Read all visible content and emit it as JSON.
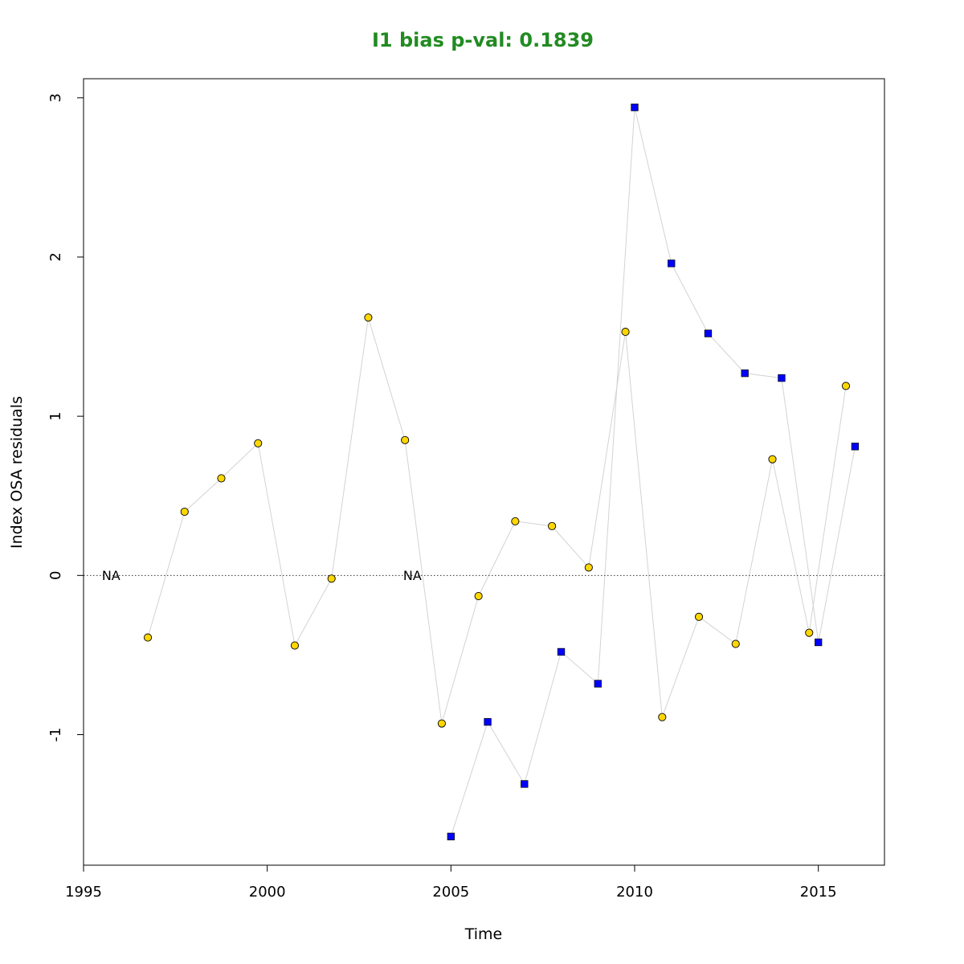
{
  "chart_data": {
    "type": "scatter",
    "title": "I1 bias p-val: 0.1839",
    "title_color": "#228b22",
    "xlabel": "Time",
    "ylabel": "Index OSA residuals",
    "xlim": [
      1995,
      2016.8
    ],
    "ylim": [
      -1.82,
      3.12
    ],
    "x_ticks": [
      1995,
      2000,
      2005,
      2010,
      2015
    ],
    "x_tick_labels": [
      "1995",
      "2000",
      "2005",
      "2010",
      "2015"
    ],
    "y_ticks": [
      -1,
      0,
      1,
      2,
      3
    ],
    "y_tick_labels": [
      "-1",
      "0",
      "1",
      "2",
      "3"
    ],
    "reference_line": {
      "y": 0,
      "style": "dotted"
    },
    "connector_color": "#d3d3d3",
    "series": [
      {
        "marker": "circle",
        "color": "#ffd700",
        "x": [
          1996.75,
          1997.75,
          1998.75,
          1999.75,
          2000.75,
          2001.75,
          2002.75,
          2003.75,
          2004.75,
          2005.75,
          2006.75,
          2007.75,
          2008.75,
          2009.75,
          2010.75,
          2011.75,
          2012.75,
          2013.75,
          2014.75,
          2015.75
        ],
        "y": [
          -0.39,
          0.4,
          0.61,
          0.83,
          -0.44,
          -0.02,
          1.62,
          0.85,
          -0.93,
          -0.13,
          0.34,
          0.31,
          0.05,
          1.53,
          -0.89,
          -0.26,
          -0.43,
          0.73,
          -0.36,
          1.19
        ]
      },
      {
        "marker": "square",
        "color": "#0000ff",
        "x": [
          2005,
          2006,
          2007,
          2008,
          2009,
          2010,
          2011,
          2012,
          2013,
          2014,
          2015,
          2016
        ],
        "y": [
          -1.64,
          -0.92,
          -1.31,
          -0.48,
          -0.68,
          2.94,
          1.96,
          1.52,
          1.27,
          1.24,
          -0.42,
          0.81
        ]
      }
    ],
    "annotations": [
      {
        "text": "NA",
        "x": 1995.75,
        "y": 0
      },
      {
        "text": "NA",
        "x": 2003.95,
        "y": 0
      }
    ]
  }
}
